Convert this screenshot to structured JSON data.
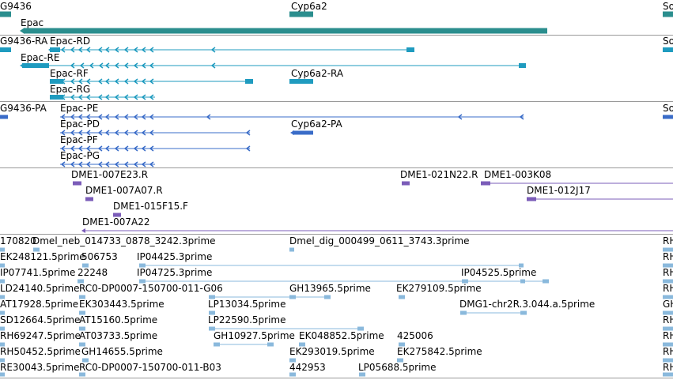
{
  "colors": {
    "gene": "#2b8e8e",
    "mrna_rna": "#1f9bbf",
    "mrna_pa": "#3a6cc8",
    "bac": "#7b5cb8",
    "est": "#8ab9dc",
    "separator": "#9a9a9a"
  },
  "tracks": {
    "gene": {
      "labels": [
        "G9436",
        "Cyp6a2",
        "So",
        "Epac"
      ]
    },
    "rna": {
      "labels": [
        "G9436-RA",
        "Epac-RD",
        "So",
        "Epac-RE",
        "Epac-RF",
        "Cyp6a2-RA",
        "Epac-RG"
      ]
    },
    "protein": {
      "labels": [
        "G9436-PA",
        "Epac-PE",
        "So",
        "Epac-PD",
        "Cyp6a2-PA",
        "Epac-PF",
        "Epac-PG"
      ]
    },
    "bac": {
      "labels": [
        "DME1-007E23.R",
        "DME1-021N22.R",
        "DME1-003K08",
        "DME1-007A07.R",
        "DME1-012J17",
        "DME1-015F15.F",
        "DME1-007A22"
      ]
    },
    "est": {
      "labels": [
        "170820",
        "Dmel_neb_014733_0878_3242.3prime",
        "Dmel_dig_000499_0611_3743.3prime",
        "RH",
        "EK248121.5prime",
        "506753",
        "IP04425.3prime",
        "RH",
        "IP07741.5prime",
        "22248",
        "IP04725.3prime",
        "IP04525.5prime",
        "RH",
        "LD24140.5prime",
        "RC0-DP0007-150700-011-G06",
        "GH13965.5prime",
        "EK279109.5prime",
        "RH",
        "AT17928.5prime",
        "EK303443.5prime",
        "LP13034.5prime",
        "DMG1-chr2R.3.044.a.5prime",
        "GH",
        "SD12664.5prime",
        "AT15160.5prime",
        "LP22590.5prime",
        "RH",
        "RH69247.5prime",
        "AT03733.5prime",
        "GH10927.5prime",
        "EK048852.5prime",
        "425006",
        "RH",
        "RH50452.5prime",
        "GH14655.5prime",
        "EK293019.5prime",
        "EK275842.5prime",
        "RH",
        "RE30043.5prime",
        "RC0-DP0007-150700-011-B03",
        "442953",
        "LP05688.5prime",
        "RH"
      ]
    }
  }
}
